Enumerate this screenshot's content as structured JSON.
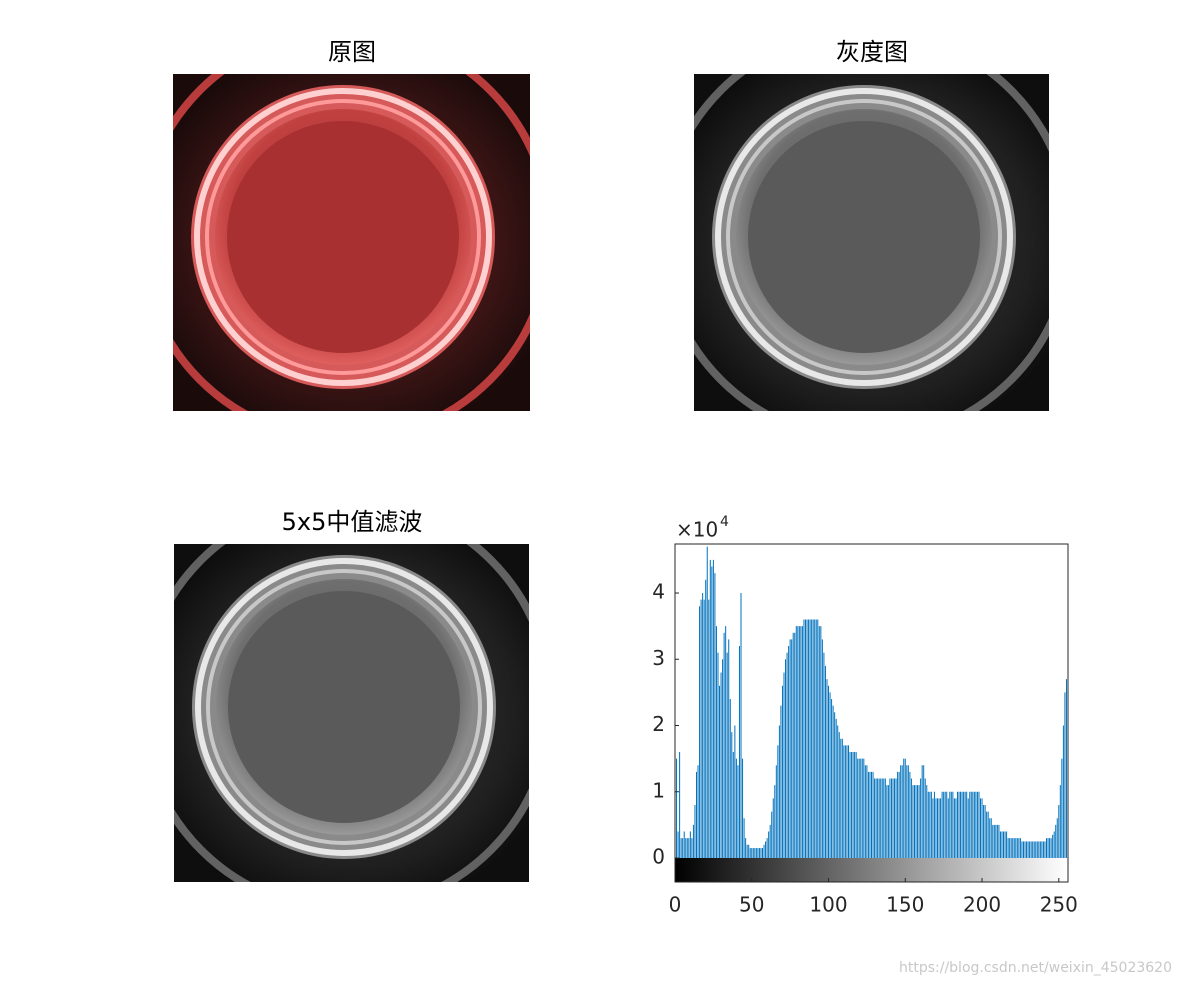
{
  "panels": [
    {
      "title": "原图"
    },
    {
      "title": "灰度图"
    },
    {
      "title": "5x5中值滤波"
    }
  ],
  "chart_data": {
    "type": "bar",
    "x": [
      0,
      1,
      2,
      3,
      4,
      5,
      6,
      7,
      8,
      9,
      10,
      11,
      12,
      13,
      14,
      15,
      16,
      17,
      18,
      19,
      20,
      21,
      22,
      23,
      24,
      25,
      26,
      27,
      28,
      29,
      30,
      31,
      32,
      33,
      34,
      35,
      36,
      37,
      38,
      39,
      40,
      41,
      42,
      43,
      44,
      45,
      46,
      47,
      48,
      49,
      50,
      51,
      52,
      53,
      54,
      55,
      56,
      57,
      58,
      59,
      60,
      61,
      62,
      63,
      64,
      65,
      66,
      67,
      68,
      69,
      70,
      71,
      72,
      73,
      74,
      75,
      76,
      77,
      78,
      79,
      80,
      81,
      82,
      83,
      84,
      85,
      86,
      87,
      88,
      89,
      90,
      91,
      92,
      93,
      94,
      95,
      96,
      97,
      98,
      99,
      100,
      101,
      102,
      103,
      104,
      105,
      106,
      107,
      108,
      109,
      110,
      111,
      112,
      113,
      114,
      115,
      116,
      117,
      118,
      119,
      120,
      121,
      122,
      123,
      124,
      125,
      126,
      127,
      128,
      129,
      130,
      131,
      132,
      133,
      134,
      135,
      136,
      137,
      138,
      139,
      140,
      141,
      142,
      143,
      144,
      145,
      146,
      147,
      148,
      149,
      150,
      151,
      152,
      153,
      154,
      155,
      156,
      157,
      158,
      159,
      160,
      161,
      162,
      163,
      164,
      165,
      166,
      167,
      168,
      169,
      170,
      171,
      172,
      173,
      174,
      175,
      176,
      177,
      178,
      179,
      180,
      181,
      182,
      183,
      184,
      185,
      186,
      187,
      188,
      189,
      190,
      191,
      192,
      193,
      194,
      195,
      196,
      197,
      198,
      199,
      200,
      201,
      202,
      203,
      204,
      205,
      206,
      207,
      208,
      209,
      210,
      211,
      212,
      213,
      214,
      215,
      216,
      217,
      218,
      219,
      220,
      221,
      222,
      223,
      224,
      225,
      226,
      227,
      228,
      229,
      230,
      231,
      232,
      233,
      234,
      235,
      236,
      237,
      238,
      239,
      240,
      241,
      242,
      243,
      244,
      245,
      246,
      247,
      248,
      249,
      250,
      251,
      252,
      253,
      254,
      255
    ],
    "values": [
      0.3,
      1.5,
      0.4,
      1.6,
      0.3,
      0.3,
      0.4,
      0.3,
      0.3,
      0.3,
      0.4,
      0.3,
      0.5,
      0.8,
      1.3,
      1.4,
      3.8,
      3.9,
      4.0,
      3.9,
      4.2,
      4.7,
      3.9,
      4.5,
      4.4,
      4.5,
      4.3,
      3.5,
      3.1,
      2.6,
      2.8,
      3.0,
      3.4,
      3.5,
      3.1,
      3.3,
      2.4,
      1.9,
      1.6,
      2.0,
      1.5,
      1.4,
      3.2,
      4.0,
      1.5,
      0.6,
      0.3,
      0.2,
      0.2,
      0.15,
      0.15,
      0.15,
      0.15,
      0.15,
      0.15,
      0.15,
      0.15,
      0.15,
      0.2,
      0.25,
      0.3,
      0.4,
      0.5,
      0.7,
      0.9,
      1.1,
      1.4,
      1.7,
      2.0,
      2.3,
      2.6,
      2.8,
      3.0,
      3.1,
      3.2,
      3.3,
      3.3,
      3.4,
      3.4,
      3.5,
      3.5,
      3.5,
      3.5,
      3.5,
      3.6,
      3.6,
      3.6,
      3.6,
      3.6,
      3.6,
      3.6,
      3.6,
      3.6,
      3.6,
      3.5,
      3.5,
      3.3,
      3.1,
      2.9,
      2.7,
      2.6,
      2.5,
      2.4,
      2.3,
      2.2,
      2.1,
      2.0,
      1.9,
      1.8,
      1.8,
      1.7,
      1.7,
      1.7,
      1.7,
      1.6,
      1.6,
      1.6,
      1.6,
      1.6,
      1.5,
      1.5,
      1.5,
      1.5,
      1.5,
      1.4,
      1.4,
      1.3,
      1.3,
      1.3,
      1.3,
      1.2,
      1.2,
      1.2,
      1.2,
      1.2,
      1.2,
      1.2,
      1.2,
      1.1,
      1.1,
      1.2,
      1.2,
      1.2,
      1.2,
      1.2,
      1.3,
      1.3,
      1.4,
      1.4,
      1.5,
      1.5,
      1.4,
      1.4,
      1.3,
      1.2,
      1.1,
      1.1,
      1.1,
      1.1,
      1.1,
      1.2,
      1.4,
      1.4,
      1.2,
      1.1,
      1.0,
      1.0,
      1.0,
      0.9,
      1.0,
      0.9,
      0.9,
      0.9,
      0.9,
      1.0,
      1.0,
      1.0,
      1.0,
      0.9,
      1.0,
      1.0,
      1.0,
      0.9,
      0.9,
      1.0,
      1.0,
      1.0,
      1.0,
      1.0,
      1.0,
      1.0,
      0.9,
      1.0,
      1.0,
      1.0,
      1.0,
      1.0,
      1.0,
      1.0,
      0.9,
      0.9,
      0.8,
      0.8,
      0.7,
      0.7,
      0.6,
      0.6,
      0.5,
      0.5,
      0.5,
      0.5,
      0.5,
      0.4,
      0.4,
      0.4,
      0.4,
      0.4,
      0.3,
      0.3,
      0.3,
      0.3,
      0.3,
      0.3,
      0.3,
      0.3,
      0.3,
      0.25,
      0.25,
      0.25,
      0.25,
      0.25,
      0.25,
      0.25,
      0.25,
      0.25,
      0.25,
      0.25,
      0.25,
      0.25,
      0.25,
      0.25,
      0.25,
      0.3,
      0.3,
      0.3,
      0.3,
      0.35,
      0.4,
      0.5,
      0.6,
      0.8,
      1.1,
      1.5,
      2.0,
      2.5,
      2.7
    ],
    "color": "#0072bd",
    "xlim": [
      0,
      256
    ],
    "xticks": [
      0,
      50,
      100,
      150,
      200,
      250
    ],
    "ylim": [
      0,
      4.74
    ],
    "yticks": [
      0,
      1,
      2,
      3,
      4
    ],
    "y_multiplier": "×10",
    "y_multiplier_exponent": "4"
  },
  "watermark": "https://blog.csdn.net/weixin_45023620"
}
